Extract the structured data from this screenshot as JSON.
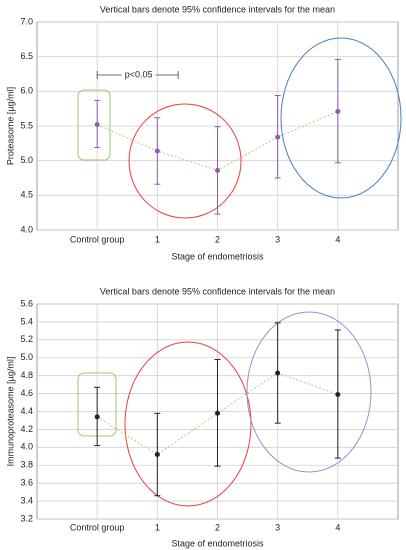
{
  "chart_data": [
    {
      "type": "errorbar",
      "title": "Vertical bars denote 95% confidence intervals for the mean",
      "x_label": "Stage of endometriosis",
      "y_label": "Proteasome [µg/ml]",
      "categories": [
        "Control group",
        "1",
        "2",
        "3",
        "4"
      ],
      "values": [
        5.52,
        5.14,
        4.86,
        5.34,
        5.71
      ],
      "lower": [
        5.19,
        4.66,
        4.23,
        4.75,
        4.97
      ],
      "upper": [
        5.87,
        5.62,
        5.49,
        5.94,
        6.46
      ],
      "color": "#8e5bb3",
      "ylim": [
        4.0,
        7.0
      ],
      "yticks": [
        {
          "value": 4.0,
          "label": "4.0"
        },
        {
          "value": 4.5,
          "label": "4.5"
        },
        {
          "value": 5.0,
          "label": "5.0"
        },
        {
          "value": 5.5,
          "label": "5.5"
        },
        {
          "value": 6.0,
          "label": "6.0"
        },
        {
          "value": 6.5,
          "label": "6.5"
        },
        {
          "value": 7.0,
          "label": "7.0"
        }
      ],
      "grid": true,
      "annotations": [
        "p<0.05"
      ]
    },
    {
      "type": "errorbar",
      "title": "Vertical bars denote 95% confidence intervals for the mean",
      "x_label": "Stage of endometriosis",
      "y_label": "Immunoproteasome [µg/ml]",
      "categories": [
        "Control group",
        "1",
        "2",
        "3",
        "4"
      ],
      "values": [
        4.34,
        3.92,
        4.38,
        4.83,
        4.59
      ],
      "lower": [
        4.02,
        3.46,
        3.79,
        4.27,
        3.88
      ],
      "upper": [
        4.67,
        4.38,
        4.98,
        5.39,
        5.31
      ],
      "color": "#222222",
      "ylim": [
        3.2,
        5.6
      ],
      "yticks": [
        {
          "value": 3.2,
          "label": "3.2"
        },
        {
          "value": 3.4,
          "label": "3.4"
        },
        {
          "value": 3.6,
          "label": "3.6"
        },
        {
          "value": 3.8,
          "label": "3.8"
        },
        {
          "value": 4.0,
          "label": "4.0"
        },
        {
          "value": 4.2,
          "label": "4.2"
        },
        {
          "value": 4.4,
          "label": "4.4"
        },
        {
          "value": 4.6,
          "label": "4.6"
        },
        {
          "value": 4.8,
          "label": "4.8"
        },
        {
          "value": 5.0,
          "label": "5.0"
        },
        {
          "value": 5.2,
          "label": "5.2"
        },
        {
          "value": 5.4,
          "label": "5.4"
        },
        {
          "value": 5.6,
          "label": "5.6"
        }
      ],
      "grid": true
    }
  ]
}
